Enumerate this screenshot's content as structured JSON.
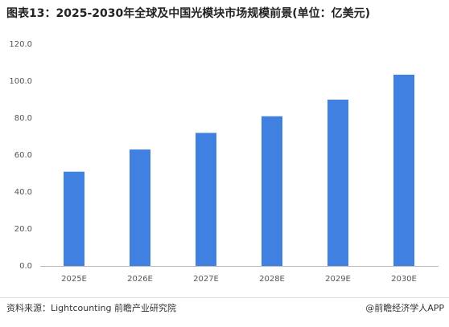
{
  "chart_data": {
    "type": "bar",
    "title": "图表13：2025-2030年全球及中国光模块市场规模前景(单位：亿美元)",
    "categories": [
      "2025E",
      "2026E",
      "2027E",
      "2028E",
      "2029E",
      "2030E"
    ],
    "values": [
      51,
      63,
      72,
      81,
      90,
      103.5
    ],
    "color": "#3f80e0",
    "ylim": [
      0,
      120
    ],
    "yticks": [
      {
        "value": 0,
        "label": "0.0"
      },
      {
        "value": 20,
        "label": "20.0"
      },
      {
        "value": 40,
        "label": "40.0"
      },
      {
        "value": 60,
        "label": "60.0"
      },
      {
        "value": 80,
        "label": "80.0"
      },
      {
        "value": 100,
        "label": "100.0"
      },
      {
        "value": 120,
        "label": "120.0"
      }
    ],
    "grid": false,
    "source": "资料来源：Lightcounting 前瞻产业研究院",
    "credit": "@前瞻经济学人APP"
  }
}
